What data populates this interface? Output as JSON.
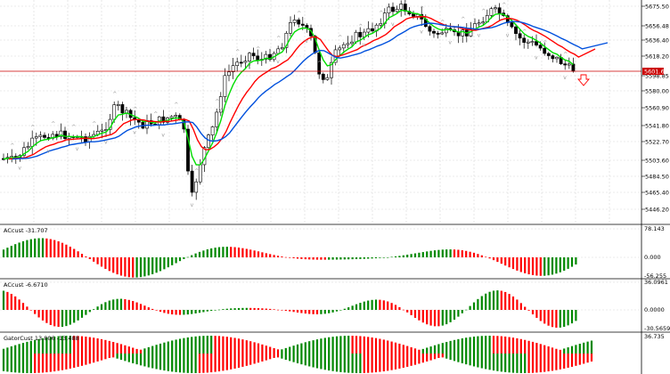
{
  "main": {
    "price_ticks": [
      "5675.50",
      "5656.48",
      "5636.40",
      "5618.20",
      "5598.85",
      "5580.00",
      "5560.90",
      "5541.80",
      "5522.70",
      "5503.60",
      "5484.50",
      "5465.40",
      "5446.20"
    ],
    "current_price": "5601.63",
    "line_colors": {
      "fast": "#00dd00",
      "medium": "#ff0000",
      "slow": "#0050dd"
    },
    "sell_arrow_color": "#ff0000"
  },
  "ind1": {
    "title": "ACcust -31.707",
    "ticks": [
      "78.143",
      "0.000",
      "-56.255"
    ]
  },
  "ind2": {
    "title": "ACcust -6.6710",
    "ticks": [
      "36.0961",
      "0.0000",
      "-30.5659"
    ]
  },
  "ind3": {
    "title": "GatorCust 13.806 -13.488",
    "ticks": [
      "36.735"
    ]
  },
  "colors": {
    "up_bar": "#008800",
    "down_bar": "#ff0000",
    "grid": "#d8d8d8",
    "price_line": "#cc0000"
  }
}
